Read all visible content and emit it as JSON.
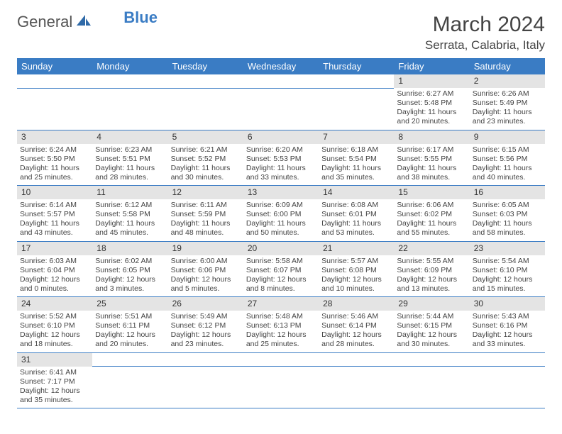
{
  "logo": {
    "general": "General",
    "blue": "Blue"
  },
  "title": "March 2024",
  "location": "Serrata, Calabria, Italy",
  "colors": {
    "header_bg": "#3a7cc4",
    "header_text": "#ffffff",
    "daynum_bg": "#e4e4e4",
    "border": "#3a7cc4",
    "text": "#444444",
    "logo_blue": "#3a7cc4"
  },
  "weekdays": [
    "Sunday",
    "Monday",
    "Tuesday",
    "Wednesday",
    "Thursday",
    "Friday",
    "Saturday"
  ],
  "weeks": [
    [
      null,
      null,
      null,
      null,
      null,
      {
        "num": "1",
        "sunrise": "Sunrise: 6:27 AM",
        "sunset": "Sunset: 5:48 PM",
        "daylight": "Daylight: 11 hours and 20 minutes."
      },
      {
        "num": "2",
        "sunrise": "Sunrise: 6:26 AM",
        "sunset": "Sunset: 5:49 PM",
        "daylight": "Daylight: 11 hours and 23 minutes."
      }
    ],
    [
      {
        "num": "3",
        "sunrise": "Sunrise: 6:24 AM",
        "sunset": "Sunset: 5:50 PM",
        "daylight": "Daylight: 11 hours and 25 minutes."
      },
      {
        "num": "4",
        "sunrise": "Sunrise: 6:23 AM",
        "sunset": "Sunset: 5:51 PM",
        "daylight": "Daylight: 11 hours and 28 minutes."
      },
      {
        "num": "5",
        "sunrise": "Sunrise: 6:21 AM",
        "sunset": "Sunset: 5:52 PM",
        "daylight": "Daylight: 11 hours and 30 minutes."
      },
      {
        "num": "6",
        "sunrise": "Sunrise: 6:20 AM",
        "sunset": "Sunset: 5:53 PM",
        "daylight": "Daylight: 11 hours and 33 minutes."
      },
      {
        "num": "7",
        "sunrise": "Sunrise: 6:18 AM",
        "sunset": "Sunset: 5:54 PM",
        "daylight": "Daylight: 11 hours and 35 minutes."
      },
      {
        "num": "8",
        "sunrise": "Sunrise: 6:17 AM",
        "sunset": "Sunset: 5:55 PM",
        "daylight": "Daylight: 11 hours and 38 minutes."
      },
      {
        "num": "9",
        "sunrise": "Sunrise: 6:15 AM",
        "sunset": "Sunset: 5:56 PM",
        "daylight": "Daylight: 11 hours and 40 minutes."
      }
    ],
    [
      {
        "num": "10",
        "sunrise": "Sunrise: 6:14 AM",
        "sunset": "Sunset: 5:57 PM",
        "daylight": "Daylight: 11 hours and 43 minutes."
      },
      {
        "num": "11",
        "sunrise": "Sunrise: 6:12 AM",
        "sunset": "Sunset: 5:58 PM",
        "daylight": "Daylight: 11 hours and 45 minutes."
      },
      {
        "num": "12",
        "sunrise": "Sunrise: 6:11 AM",
        "sunset": "Sunset: 5:59 PM",
        "daylight": "Daylight: 11 hours and 48 minutes."
      },
      {
        "num": "13",
        "sunrise": "Sunrise: 6:09 AM",
        "sunset": "Sunset: 6:00 PM",
        "daylight": "Daylight: 11 hours and 50 minutes."
      },
      {
        "num": "14",
        "sunrise": "Sunrise: 6:08 AM",
        "sunset": "Sunset: 6:01 PM",
        "daylight": "Daylight: 11 hours and 53 minutes."
      },
      {
        "num": "15",
        "sunrise": "Sunrise: 6:06 AM",
        "sunset": "Sunset: 6:02 PM",
        "daylight": "Daylight: 11 hours and 55 minutes."
      },
      {
        "num": "16",
        "sunrise": "Sunrise: 6:05 AM",
        "sunset": "Sunset: 6:03 PM",
        "daylight": "Daylight: 11 hours and 58 minutes."
      }
    ],
    [
      {
        "num": "17",
        "sunrise": "Sunrise: 6:03 AM",
        "sunset": "Sunset: 6:04 PM",
        "daylight": "Daylight: 12 hours and 0 minutes."
      },
      {
        "num": "18",
        "sunrise": "Sunrise: 6:02 AM",
        "sunset": "Sunset: 6:05 PM",
        "daylight": "Daylight: 12 hours and 3 minutes."
      },
      {
        "num": "19",
        "sunrise": "Sunrise: 6:00 AM",
        "sunset": "Sunset: 6:06 PM",
        "daylight": "Daylight: 12 hours and 5 minutes."
      },
      {
        "num": "20",
        "sunrise": "Sunrise: 5:58 AM",
        "sunset": "Sunset: 6:07 PM",
        "daylight": "Daylight: 12 hours and 8 minutes."
      },
      {
        "num": "21",
        "sunrise": "Sunrise: 5:57 AM",
        "sunset": "Sunset: 6:08 PM",
        "daylight": "Daylight: 12 hours and 10 minutes."
      },
      {
        "num": "22",
        "sunrise": "Sunrise: 5:55 AM",
        "sunset": "Sunset: 6:09 PM",
        "daylight": "Daylight: 12 hours and 13 minutes."
      },
      {
        "num": "23",
        "sunrise": "Sunrise: 5:54 AM",
        "sunset": "Sunset: 6:10 PM",
        "daylight": "Daylight: 12 hours and 15 minutes."
      }
    ],
    [
      {
        "num": "24",
        "sunrise": "Sunrise: 5:52 AM",
        "sunset": "Sunset: 6:10 PM",
        "daylight": "Daylight: 12 hours and 18 minutes."
      },
      {
        "num": "25",
        "sunrise": "Sunrise: 5:51 AM",
        "sunset": "Sunset: 6:11 PM",
        "daylight": "Daylight: 12 hours and 20 minutes."
      },
      {
        "num": "26",
        "sunrise": "Sunrise: 5:49 AM",
        "sunset": "Sunset: 6:12 PM",
        "daylight": "Daylight: 12 hours and 23 minutes."
      },
      {
        "num": "27",
        "sunrise": "Sunrise: 5:48 AM",
        "sunset": "Sunset: 6:13 PM",
        "daylight": "Daylight: 12 hours and 25 minutes."
      },
      {
        "num": "28",
        "sunrise": "Sunrise: 5:46 AM",
        "sunset": "Sunset: 6:14 PM",
        "daylight": "Daylight: 12 hours and 28 minutes."
      },
      {
        "num": "29",
        "sunrise": "Sunrise: 5:44 AM",
        "sunset": "Sunset: 6:15 PM",
        "daylight": "Daylight: 12 hours and 30 minutes."
      },
      {
        "num": "30",
        "sunrise": "Sunrise: 5:43 AM",
        "sunset": "Sunset: 6:16 PM",
        "daylight": "Daylight: 12 hours and 33 minutes."
      }
    ],
    [
      {
        "num": "31",
        "sunrise": "Sunrise: 6:41 AM",
        "sunset": "Sunset: 7:17 PM",
        "daylight": "Daylight: 12 hours and 35 minutes."
      },
      null,
      null,
      null,
      null,
      null,
      null
    ]
  ]
}
